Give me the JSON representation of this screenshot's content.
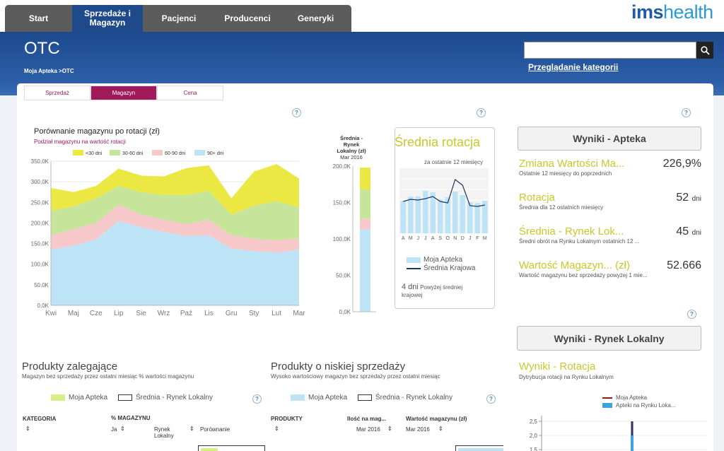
{
  "nav": {
    "items": [
      "Start",
      "Sprzedaże i Magazyn",
      "Pacjenci",
      "Producenci",
      "Generyki"
    ],
    "active": 1
  },
  "logo": {
    "part1": "ims",
    "part2": "health"
  },
  "header": {
    "title": "OTC",
    "breadcrumb": "Moja Apteka >OTC",
    "search_placeholder": "",
    "category_link": "Przeglądanie kategorii"
  },
  "subtabs": {
    "items": [
      "Sprzedaż",
      "Magazyn",
      "Cena"
    ],
    "active": 1
  },
  "colors": {
    "navy": "#1d4a8e",
    "accent": "#a0195a",
    "kpi": "#c8c82a",
    "lt30": "#ece843",
    "d30_60": "#c6e59a",
    "d60_90": "#f7c8ca",
    "d90p": "#bde3f7"
  },
  "main_chart": {
    "title": "Porównanie magazynu po rotacji (zł)",
    "subtitle": "Podział magazynu na wartość rotacji",
    "legend": [
      "<30 dni",
      "30-60 dni",
      "60-90 dni",
      "90+ dni"
    ]
  },
  "local_bar": {
    "title_lines": [
      "Średnia -",
      "Rynek",
      "Lokalny (zł)"
    ],
    "date": "Mar 2016"
  },
  "rotation": {
    "title": "Średnia rotacja",
    "subtitle": "za ostatnie 12 miesięcy",
    "legend_bar": "Moja Apteka",
    "legend_line": "Średnia Krajowa",
    "weeks_num": "4 dni",
    "weeks_text": "Powyżej średniej",
    "weeks_text2": "krajowej"
  },
  "results": {
    "title": "Wyniki - Apteka",
    "kpis": [
      {
        "label": "Zmiana Wartości Ma...",
        "value": "226,9%",
        "unit": "",
        "sub": "Ostatnie 12 miesięcy do poprzednich"
      },
      {
        "label": "Rotacja",
        "value": "52",
        "unit": "dni",
        "sub": "Średnia dla 12 ostatnich miesięcy"
      },
      {
        "label": "Średnia - Rynek Lok...",
        "value": "45",
        "unit": "dni",
        "sub": "Średni obrót na Rynku Lokalnym ostatnich 12 ..."
      },
      {
        "label": "Wartość Magazyn... (zł)",
        "value": "52.666",
        "unit": "",
        "sub": "Wartość magazynu bez sprzedaży powyżej 1 mie..."
      }
    ]
  },
  "local_results": {
    "title": "Wyniki - Rynek Lokalny",
    "subtitle": "Wyniki - Rotacja",
    "sub2": "Dytrybucja rotacji na Rynku Lokalnym",
    "legend1": "Moja Apteka",
    "legend2": "Apteki na Rynku Loka...",
    "yticks": [
      "2,5",
      "2,0",
      "1,5"
    ]
  },
  "lagging": {
    "title": "Produkty zalegające",
    "subtitle": "Magazyn bez sprzedaży przez ostatni miesiąc % wartości magazynu",
    "legend1": "Moja Apteka",
    "legend2": "Średnia - Rynek Lokalny",
    "col_kategoria": "KATEGORIA",
    "col_magazyn": "% MAGAZYNU",
    "sub_ja": "Ja",
    "sub_rynek": "Rynek Lokalny",
    "sub_porownanie": "Porównanie"
  },
  "lowsales": {
    "title": "Produkty o niskiej sprzedaży",
    "subtitle": "Wysoko wartościowy magazyn bez sprzedaży przez ostatni miesiąc",
    "legend1": "Moja Apteka",
    "legend2": "Średnia - Rynek Lokalny",
    "col_produkty": "PRODUKTY",
    "col_ilosc": "Ilość na mag...",
    "col_wartosc": "Wartość magazynu (zł)",
    "sub_date1": "Mar 2016",
    "sub_date2": "Mar 2016"
  },
  "chart_data": [
    {
      "type": "area",
      "title": "Porównanie magazynu po rotacji (zł)",
      "categories": [
        "Kwi",
        "Maj",
        "Cze",
        "Lip",
        "Sie",
        "Wrz",
        "Paź",
        "Lis",
        "Gru",
        "Sty",
        "Lut",
        "Mar"
      ],
      "ylim": [
        0,
        350000
      ],
      "yticks": [
        "0,0K",
        "50,0K",
        "100,0K",
        "150,0K",
        "200,0K",
        "250,0K",
        "300,0K",
        "350,0K"
      ],
      "series": [
        {
          "name": "90+ dni",
          "values": [
            135000,
            145000,
            160000,
            205000,
            190000,
            178000,
            168000,
            170000,
            138000,
            132000,
            128000,
            135000
          ]
        },
        {
          "name": "60-90 dni",
          "values": [
            35000,
            40000,
            40000,
            40000,
            30000,
            30000,
            30000,
            38000,
            32000,
            30000,
            30000,
            28000
          ]
        },
        {
          "name": "30-60 dni",
          "values": [
            60000,
            55000,
            60000,
            45000,
            55000,
            60000,
            70000,
            70000,
            50000,
            80000,
            95000,
            75000
          ]
        },
        {
          "name": "<30 dni",
          "values": [
            55000,
            35000,
            30000,
            42000,
            40000,
            45000,
            65000,
            62000,
            40000,
            83000,
            90000,
            70000
          ]
        }
      ]
    },
    {
      "type": "bar",
      "title": "Średnia - Rynek Lokalny (zł)",
      "categories": [
        "Mar 2016"
      ],
      "ylim": [
        0,
        200000
      ],
      "yticks": [
        "0,0K",
        "50,0K",
        "100,0K",
        "150,0K",
        "200,0K"
      ],
      "series": [
        {
          "name": "90+ dni",
          "values": [
            113000
          ]
        },
        {
          "name": "60-90 dni",
          "values": [
            15000
          ]
        },
        {
          "name": "30-60 dni",
          "values": [
            40000
          ]
        },
        {
          "name": "<30 dni",
          "values": [
            30000
          ]
        }
      ]
    },
    {
      "type": "bar",
      "title": "Średnia rotacja",
      "categories": [
        "A",
        "M",
        "J",
        "J",
        "A",
        "S",
        "O",
        "N",
        "D",
        "J",
        "F",
        "M"
      ],
      "series": [
        {
          "name": "Moja Apteka",
          "values": [
            46,
            52,
            52,
            60,
            58,
            48,
            51,
            59,
            54,
            44,
            43,
            46
          ]
        },
        {
          "name": "Średnia Krajowa",
          "values": [
            45,
            48,
            47,
            49,
            52,
            45,
            43,
            76,
            68,
            39,
            38,
            40
          ]
        }
      ]
    }
  ]
}
